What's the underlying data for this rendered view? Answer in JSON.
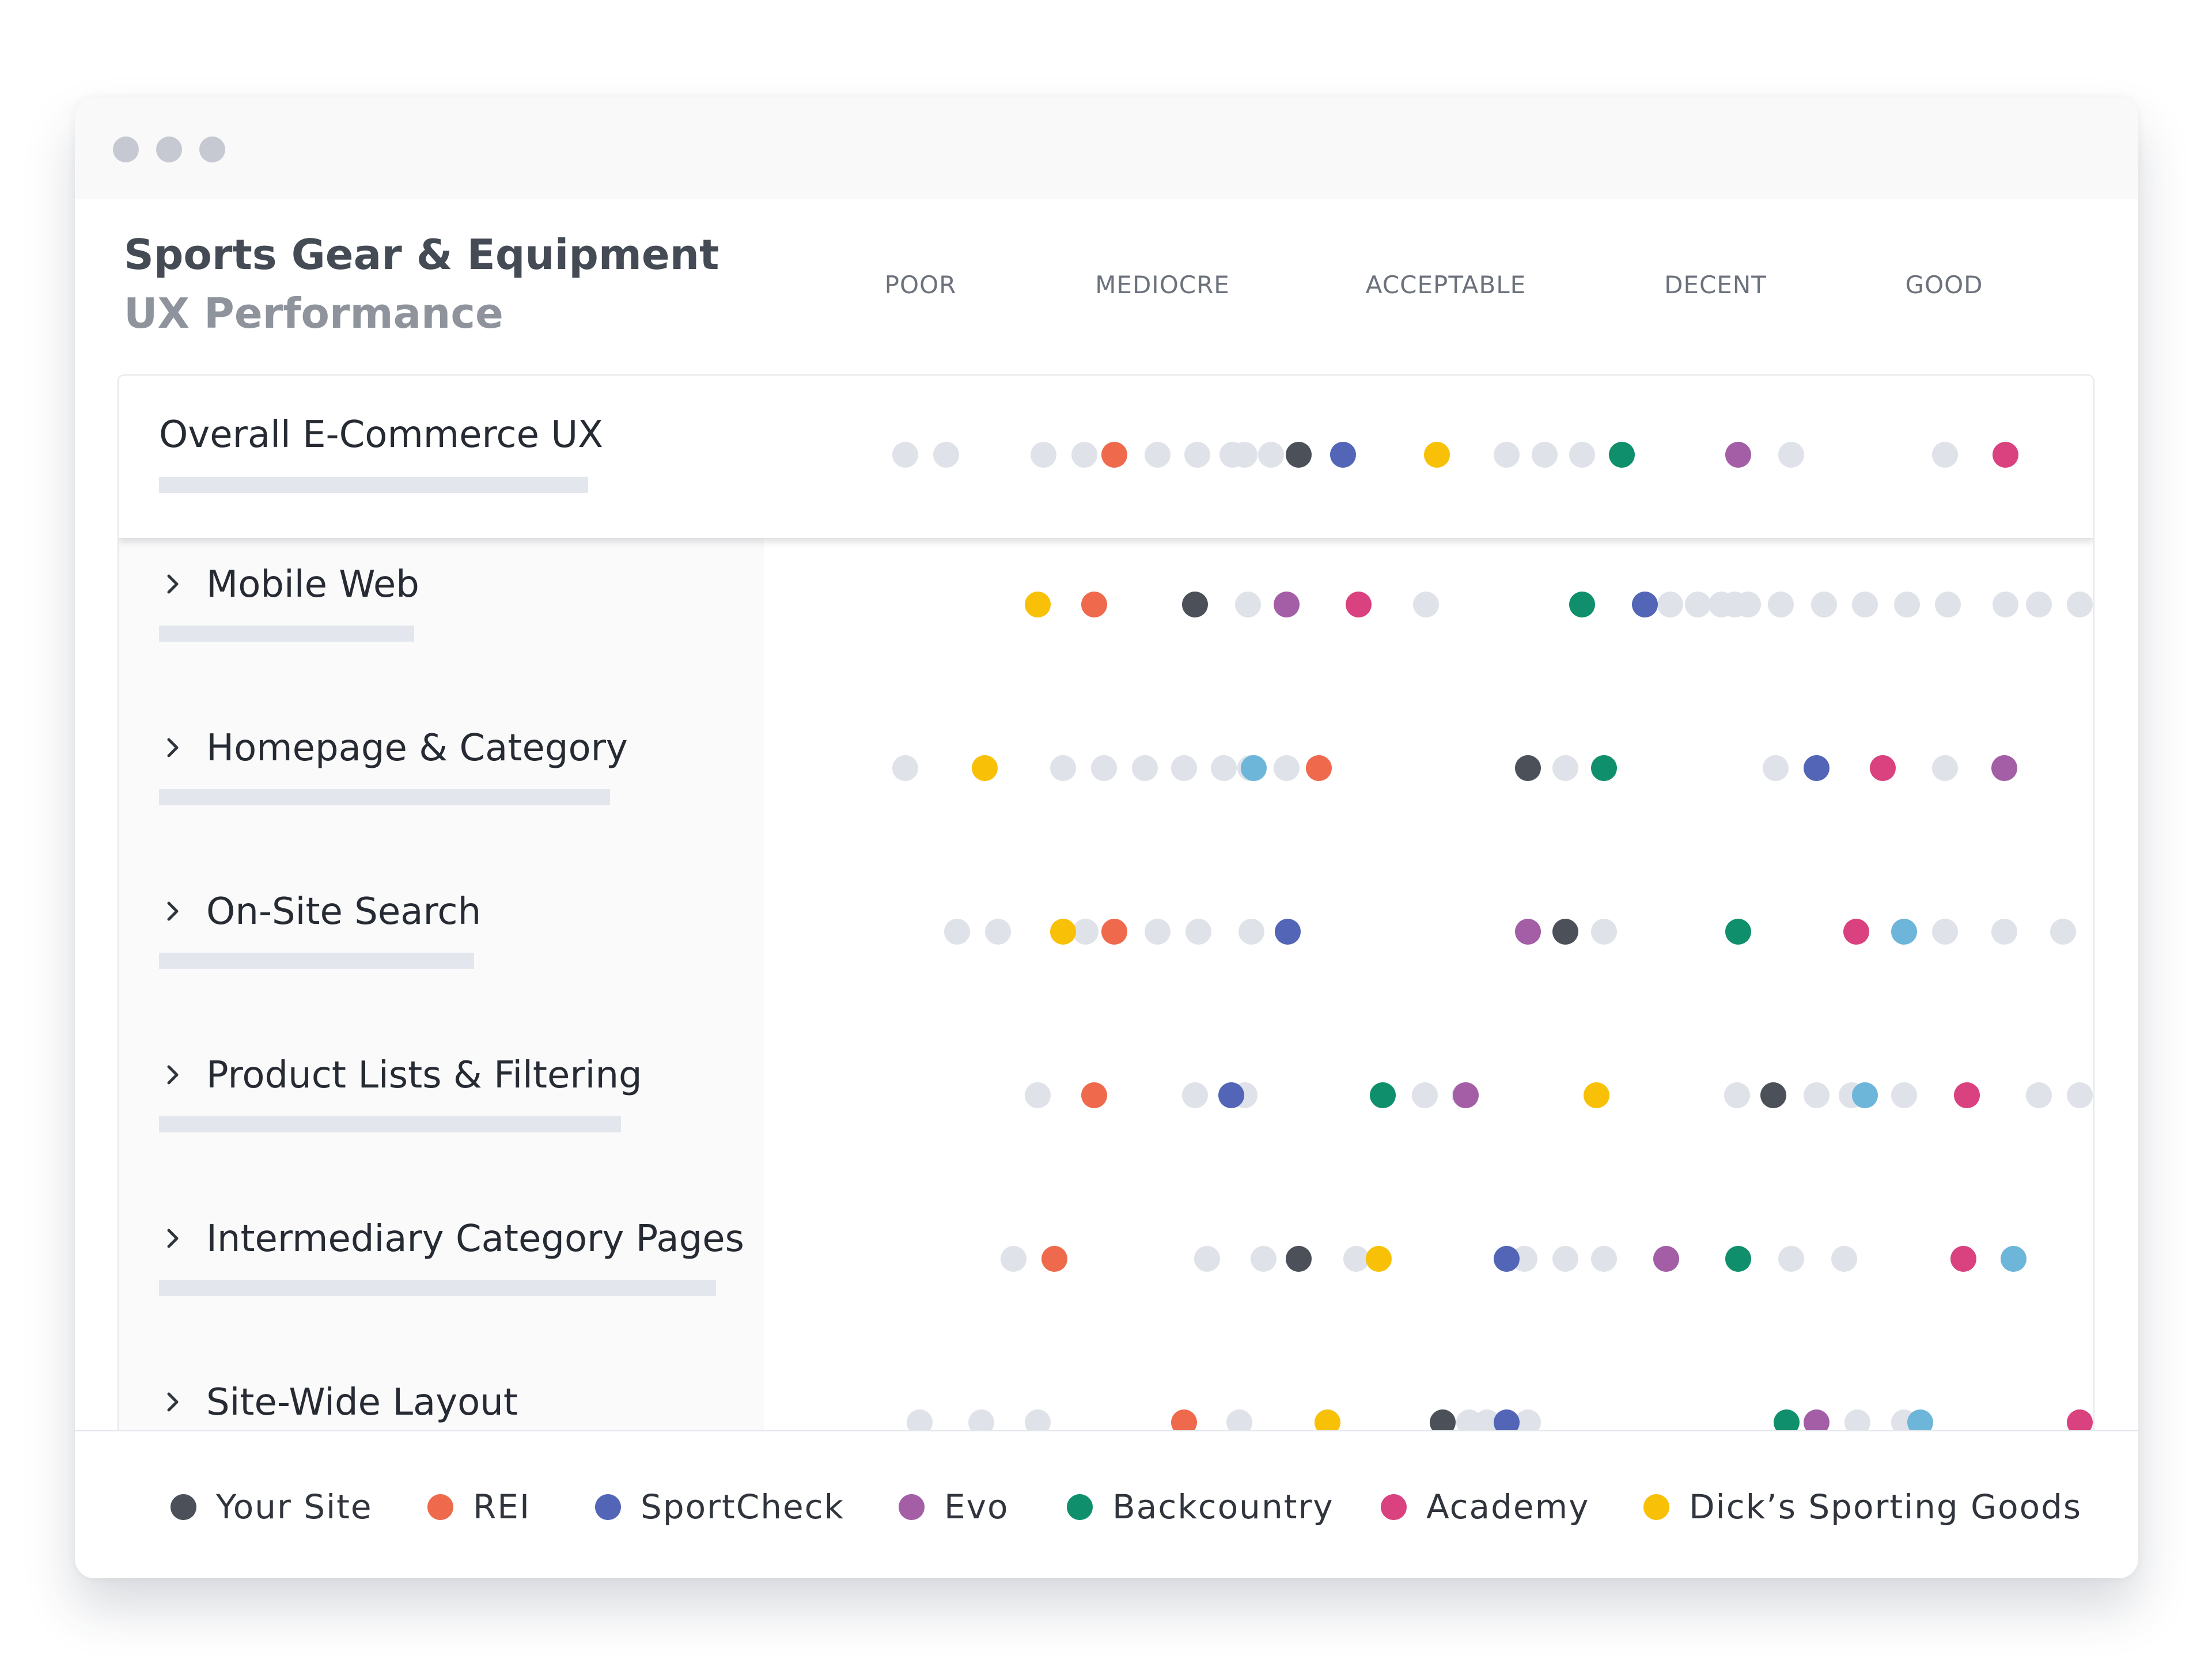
{
  "header": {
    "title": "Sports Gear & Equipment",
    "subtitle": "UX Performance"
  },
  "scale": [
    "POOR",
    "MEDIOCRE",
    "ACCEPTABLE",
    "DECENT",
    "GOOD"
  ],
  "colors": {
    "background": "#ffffff",
    "benchmark_dot": "#dfe2e8",
    "label_column": "#fafafb"
  },
  "icons": {
    "expand": "chevron-right-icon"
  },
  "sites": [
    {
      "key": "your",
      "label": "Your Site",
      "color": "#4b5059"
    },
    {
      "key": "rei",
      "label": "REI",
      "color": "#ef6a4c"
    },
    {
      "key": "sportcheck",
      "label": "SportCheck",
      "color": "#5265b6"
    },
    {
      "key": "evo",
      "label": "Evo",
      "color": "#a35ea6"
    },
    {
      "key": "backcountry",
      "label": "Backcountry",
      "color": "#0f8f6c"
    },
    {
      "key": "academy",
      "label": "Academy",
      "color": "#d9417f"
    },
    {
      "key": "dicks",
      "label": "Dick’s Sporting Goods",
      "color": "#f8c108"
    }
  ],
  "rows": [
    {
      "label": "Overall E-Commerce UX",
      "expandable": false,
      "scores": {
        "your": 0.358,
        "rei": 0.205,
        "sportcheck": 0.395,
        "evo": 0.724,
        "backcountry": 0.627,
        "academy": 0.946,
        "dicks": 0.473
      },
      "benchmarks": [
        0.031,
        0.065,
        0.146,
        0.18,
        0.241,
        0.274,
        0.303,
        0.313,
        0.335,
        0.531,
        0.563,
        0.594,
        0.768,
        0.896
      ]
    },
    {
      "label": "Mobile Web",
      "expandable": true,
      "scores": {
        "your": 0.272,
        "rei": 0.188,
        "sportcheck": 0.646,
        "evo": 0.348,
        "backcountry": 0.594,
        "academy": 0.408,
        "dicks": 0.141
      },
      "benchmarks": [
        0.316,
        0.464,
        0.667,
        0.69,
        0.71,
        0.721,
        0.732,
        0.759,
        0.795,
        0.829,
        0.864,
        0.898,
        0.946,
        0.974,
        1.008
      ]
    },
    {
      "label": "Homepage & Category",
      "expandable": true,
      "scores": {
        "your": 0.549,
        "rei": 0.375,
        "sportcheck": 0.789,
        "evo": 0.945,
        "backcountry": 0.612,
        "academy": 0.844,
        "dicks": 0.097
      },
      "benchmarks": [
        0.031,
        0.162,
        0.196,
        0.23,
        0.263,
        0.296,
        0.318,
        0.348,
        0.58,
        0.755,
        0.896
      ],
      "extra_dots": [
        {
          "color": "#6db5d9",
          "pos": 0.321
        }
      ]
    },
    {
      "label": "On-Site Search",
      "expandable": true,
      "scores": {
        "your": 0.58,
        "rei": 0.205,
        "sportcheck": 0.349,
        "evo": 0.549,
        "backcountry": 0.724,
        "academy": 0.822,
        "dicks": 0.162
      },
      "benchmarks": [
        0.074,
        0.108,
        0.181,
        0.241,
        0.275,
        0.319,
        0.612,
        0.896,
        0.945,
        0.994
      ],
      "extra_dots": [
        {
          "color": "#6db5d9",
          "pos": 0.862
        }
      ]
    },
    {
      "label": "Product Lists & Filtering",
      "expandable": true,
      "scores": {
        "your": 0.753,
        "rei": 0.188,
        "sportcheck": 0.302,
        "evo": 0.497,
        "backcountry": 0.428,
        "academy": 0.914,
        "dicks": 0.606
      },
      "benchmarks": [
        0.141,
        0.272,
        0.313,
        0.463,
        0.496,
        0.723,
        0.789,
        0.818,
        0.862,
        0.974,
        1.008
      ],
      "extra_dots": [
        {
          "color": "#6db5d9",
          "pos": 0.829
        }
      ]
    },
    {
      "label": "Intermediary Category Pages",
      "expandable": true,
      "scores": {
        "your": 0.358,
        "rei": 0.155,
        "sportcheck": 0.531,
        "evo": 0.664,
        "backcountry": 0.724,
        "academy": 0.911,
        "dicks": 0.425
      },
      "benchmarks": [
        0.121,
        0.282,
        0.329,
        0.406,
        0.546,
        0.58,
        0.612,
        0.768,
        0.812
      ],
      "extra_dots": [
        {
          "color": "#6db5d9",
          "pos": 0.953
        }
      ]
    },
    {
      "label": "Site-Wide Layout",
      "expandable": true,
      "scores": {
        "your": 0.478,
        "rei": 0.263,
        "sportcheck": 0.531,
        "evo": 0.789,
        "backcountry": 0.764,
        "academy": 1.008,
        "dicks": 0.382
      },
      "benchmarks": [
        0.043,
        0.094,
        0.141,
        0.309,
        0.5,
        0.515,
        0.549,
        0.823,
        0.862
      ],
      "extra_dots": [
        {
          "color": "#6db5d9",
          "pos": 0.875
        }
      ]
    }
  ],
  "chart_data": {
    "type": "scatter",
    "title": "Sports Gear & Equipment",
    "subtitle": "UX Performance",
    "x_categories": [
      "POOR",
      "MEDIOCRE",
      "ACCEPTABLE",
      "DECENT",
      "GOOD"
    ],
    "y_categories": [
      "Overall E-Commerce UX",
      "Mobile Web",
      "Homepage & Category",
      "On-Site Search",
      "Product Lists & Filtering",
      "Intermediary Category Pages",
      "Site-Wide Layout"
    ],
    "legend_position": "bottom",
    "series": [
      {
        "name": "Your Site",
        "values": [
          0.358,
          0.272,
          0.549,
          0.58,
          0.753,
          0.358,
          0.478
        ]
      },
      {
        "name": "REI",
        "values": [
          0.205,
          0.188,
          0.375,
          0.205,
          0.188,
          0.155,
          0.263
        ]
      },
      {
        "name": "SportCheck",
        "values": [
          0.395,
          0.646,
          0.789,
          0.349,
          0.302,
          0.531,
          0.531
        ]
      },
      {
        "name": "Evo",
        "values": [
          0.724,
          0.348,
          0.945,
          0.549,
          0.497,
          0.664,
          0.789
        ]
      },
      {
        "name": "Backcountry",
        "values": [
          0.627,
          0.594,
          0.612,
          0.724,
          0.428,
          0.724,
          0.764
        ]
      },
      {
        "name": "Academy",
        "values": [
          0.946,
          0.408,
          0.844,
          0.822,
          0.914,
          0.911,
          1.008
        ]
      },
      {
        "name": "Dick’s Sporting Goods",
        "values": [
          0.473,
          0.141,
          0.097,
          0.162,
          0.606,
          0.425,
          0.382
        ]
      }
    ]
  }
}
